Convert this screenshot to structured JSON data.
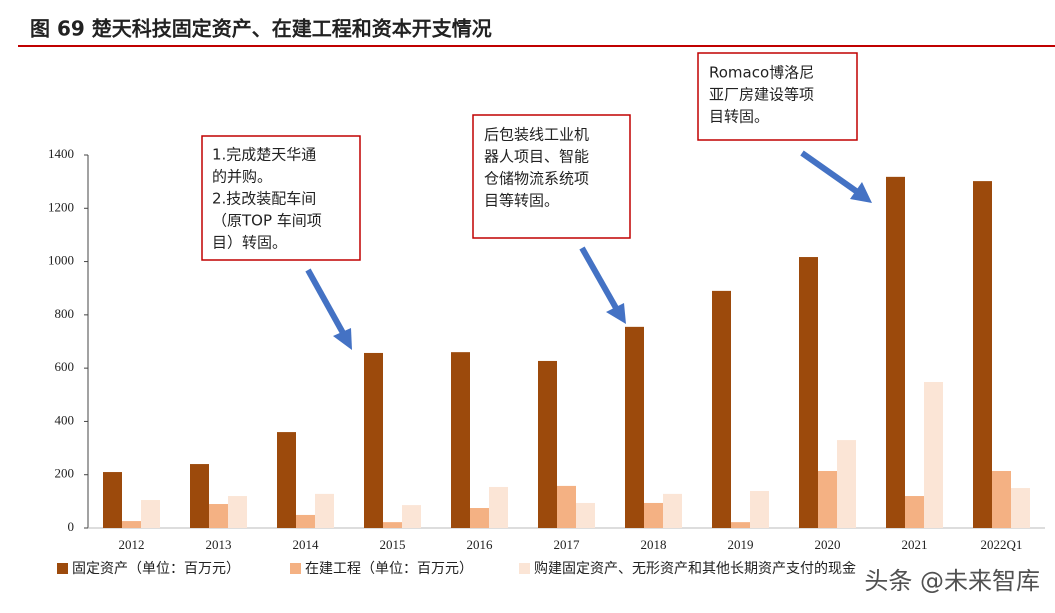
{
  "chart_data": {
    "type": "bar",
    "title": "图 69 楚天科技固定资产、在建工程和资本开支情况",
    "categories": [
      "2012",
      "2013",
      "2014",
      "2015",
      "2016",
      "2017",
      "2018",
      "2019",
      "2020",
      "2021",
      "2022Q1"
    ],
    "series": [
      {
        "name": "固定资产（单位：百万元）",
        "color": "#9c4a0c",
        "values": [
          210,
          240,
          360,
          657,
          660,
          627,
          755,
          890,
          1017,
          1318,
          1302
        ]
      },
      {
        "name": "在建工程（单位：百万元）",
        "color": "#f4b183",
        "values": [
          26,
          90,
          49,
          22,
          75,
          158,
          94,
          22,
          214,
          120,
          214
        ]
      },
      {
        "name": "购建固定资产、无形资产和其他长期资产支付的现金",
        "color": "#fbe5d6",
        "values": [
          105,
          120,
          128,
          86,
          154,
          94,
          128,
          139,
          330,
          548,
          150
        ]
      }
    ],
    "ylim": [
      0,
      1400
    ],
    "yticks": [
      0,
      200,
      400,
      600,
      800,
      1000,
      1200,
      1400
    ],
    "grid": false,
    "legend": "bottom",
    "annotations": [
      {
        "lines": [
          "1.完成楚天华通",
          "的并购。",
          "2.技改装配车间",
          "（原TOP 车间项",
          "目）转固。"
        ]
      },
      {
        "lines": [
          "后包装线工业机",
          "器人项目、智能",
          "仓储物流系统项",
          "目等转固。"
        ]
      },
      {
        "lines": [
          "Romaco博洛尼",
          "亚厂房建设等项",
          "目转固。"
        ]
      }
    ],
    "watermark": "头条 @未来智库"
  }
}
